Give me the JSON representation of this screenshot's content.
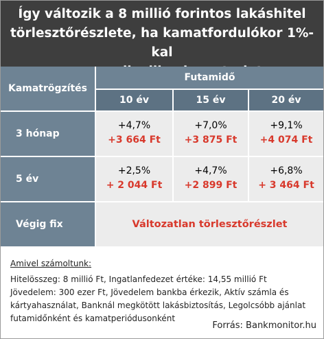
{
  "header": {
    "title_lines": [
      "Így változik a 8 millió forintos lakáshitel",
      "törlesztőrészlete, ha kamatfordulókor 1%-kal",
      "megemelkedik a kamatszint"
    ]
  },
  "table": {
    "row_header": "Kamatrögzítés",
    "column_group": "Futamidő",
    "columns": [
      "10 év",
      "15 év",
      "20 év"
    ],
    "rows": [
      {
        "label": "3 hónap",
        "cells": [
          {
            "change": "+4,7%",
            "amount": "+3 664 Ft"
          },
          {
            "change": "+7,0%",
            "amount": "+3 875 Ft"
          },
          {
            "change": "+9,1%",
            "amount": "+4 074 Ft"
          }
        ]
      },
      {
        "label": "5 év",
        "cells": [
          {
            "change": "+2,5%",
            "amount": "+ 2 044 Ft"
          },
          {
            "change": "+4,7%",
            "amount": "+2 899 Ft"
          },
          {
            "change": "+6,8%",
            "amount": "+ 3 464 Ft"
          }
        ]
      }
    ],
    "fixed_row": {
      "label": "Végig fix",
      "text": "Változatlan törlesztőrészlet"
    }
  },
  "notes": {
    "heading": "Amivel számoltunk:",
    "lines": [
      "Hitelösszeg: 8 millió Ft, Ingatlanfedezet értéke: 14,55 millió Ft",
      "Jövedelem: 300 ezer Ft, Jövedelem bankba érkezik, Aktív számla és",
      "kártyahasználat, Banknál megkötött lakásbiztosítás, Legolcsóbb ajánlat",
      "futamidőnként és kamatperiódusonként"
    ]
  },
  "source": "Forrás: Bankmonitor.hu"
}
